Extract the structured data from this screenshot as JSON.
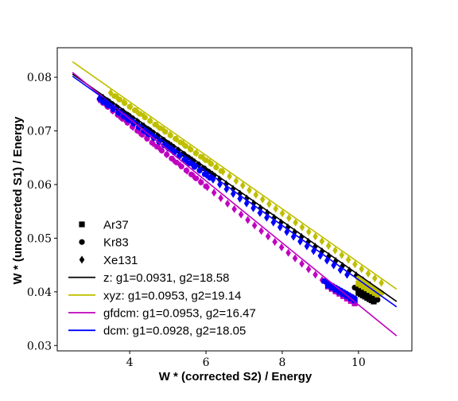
{
  "chart_data": {
    "type": "scatter",
    "xlabel": "W * (corrected S2) / Energy",
    "ylabel": "W * (uncorrected S1) / Energy",
    "xlim": [
      2.1,
      11.4
    ],
    "ylim": [
      0.029,
      0.0855
    ],
    "xticks": [
      4,
      6,
      8,
      10
    ],
    "xtick_labels": [
      "4",
      "6",
      "8",
      "10"
    ],
    "yticks": [
      0.03,
      0.04,
      0.05,
      0.06,
      0.07,
      0.08
    ],
    "ytick_labels": [
      "0.03",
      "0.04",
      "0.05",
      "0.06",
      "0.07",
      "0.08"
    ],
    "legend_position": "lower-left",
    "markers": [
      {
        "label": "Ar37",
        "shape": "square"
      },
      {
        "label": "Kr83",
        "shape": "circle"
      },
      {
        "label": "Xe131",
        "shape": "diamond"
      }
    ],
    "fit_lines": [
      {
        "label": "z: g1=0.0931, g2=18.58",
        "color": "#000000",
        "x": [
          2.5,
          11.0
        ],
        "y": [
          0.0806,
          0.0382
        ]
      },
      {
        "label": "xyz: g1=0.0953, g2=19.14",
        "color": "#bfbf00",
        "x": [
          2.5,
          11.0
        ],
        "y": [
          0.0829,
          0.0405
        ]
      },
      {
        "label": "gfdcm: g1=0.0953, g2=16.47",
        "color": "#bf00bf",
        "x": [
          2.5,
          11.0
        ],
        "y": [
          0.0809,
          0.0318
        ]
      },
      {
        "label": "dcm: g1=0.0928, g2=18.05",
        "color": "#0000ff",
        "x": [
          2.5,
          11.0
        ],
        "y": [
          0.0802,
          0.0372
        ]
      }
    ],
    "series": [
      {
        "group": "z",
        "color": "#000000",
        "shape": "diamond",
        "x_range": [
          3.3,
          10.3
        ],
        "count": 40,
        "y_start": 0.0762,
        "slope": -0.00499
      },
      {
        "group": "z",
        "color": "#000000",
        "shape": "circle",
        "x_range": [
          3.4,
          6.2
        ],
        "count": 22,
        "y_start": 0.0757,
        "slope": -0.00499
      },
      {
        "group": "z",
        "color": "#000000",
        "shape": "circle",
        "x_range": [
          9.9,
          10.5
        ],
        "count": 10,
        "y_start": 0.0408,
        "slope": -0.0038
      },
      {
        "group": "z",
        "color": "#000000",
        "shape": "square",
        "x_range": [
          10.0,
          10.4
        ],
        "count": 8,
        "y_start": 0.0398,
        "slope": -0.004
      },
      {
        "group": "xyz",
        "color": "#bfbf00",
        "shape": "diamond",
        "x_range": [
          3.5,
          10.6
        ],
        "count": 42,
        "y_start": 0.0771,
        "slope": -0.00499
      },
      {
        "group": "xyz",
        "color": "#bfbf00",
        "shape": "circle",
        "x_range": [
          3.6,
          6.4
        ],
        "count": 22,
        "y_start": 0.0765,
        "slope": -0.00499
      },
      {
        "group": "xyz",
        "color": "#bfbf00",
        "shape": "circle",
        "x_range": [
          10.0,
          10.6
        ],
        "count": 10,
        "y_start": 0.0425,
        "slope": -0.0045
      },
      {
        "group": "xyz",
        "color": "#bfbf00",
        "shape": "square",
        "x_range": [
          10.0,
          10.5
        ],
        "count": 8,
        "y_start": 0.0415,
        "slope": -0.004
      },
      {
        "group": "gfdcm",
        "color": "#bf00bf",
        "shape": "diamond",
        "x_range": [
          3.2,
          9.4
        ],
        "count": 36,
        "y_start": 0.0758,
        "slope": -0.00575
      },
      {
        "group": "gfdcm",
        "color": "#bf00bf",
        "shape": "circle",
        "x_range": [
          3.3,
          6.0
        ],
        "count": 22,
        "y_start": 0.0752,
        "slope": -0.00575
      },
      {
        "group": "gfdcm",
        "color": "#bf00bf",
        "shape": "circle",
        "x_range": [
          9.1,
          9.9
        ],
        "count": 12,
        "y_start": 0.042,
        "slope": -0.0045
      },
      {
        "group": "gfdcm",
        "color": "#bf00bf",
        "shape": "square",
        "x_range": [
          9.2,
          9.9
        ],
        "count": 8,
        "y_start": 0.041,
        "slope": -0.0045
      },
      {
        "group": "dcm",
        "color": "#0000ff",
        "shape": "diamond",
        "x_range": [
          3.2,
          9.7
        ],
        "count": 38,
        "y_start": 0.076,
        "slope": -0.00505
      },
      {
        "group": "dcm",
        "color": "#0000ff",
        "shape": "circle",
        "x_range": [
          3.3,
          6.1
        ],
        "count": 22,
        "y_start": 0.0754,
        "slope": -0.00505
      },
      {
        "group": "dcm",
        "color": "#0000ff",
        "shape": "circle",
        "x_range": [
          9.1,
          9.9
        ],
        "count": 12,
        "y_start": 0.042,
        "slope": -0.004
      },
      {
        "group": "dcm",
        "color": "#0000ff",
        "shape": "square",
        "x_range": [
          9.2,
          9.9
        ],
        "count": 8,
        "y_start": 0.0412,
        "slope": -0.004
      }
    ]
  }
}
